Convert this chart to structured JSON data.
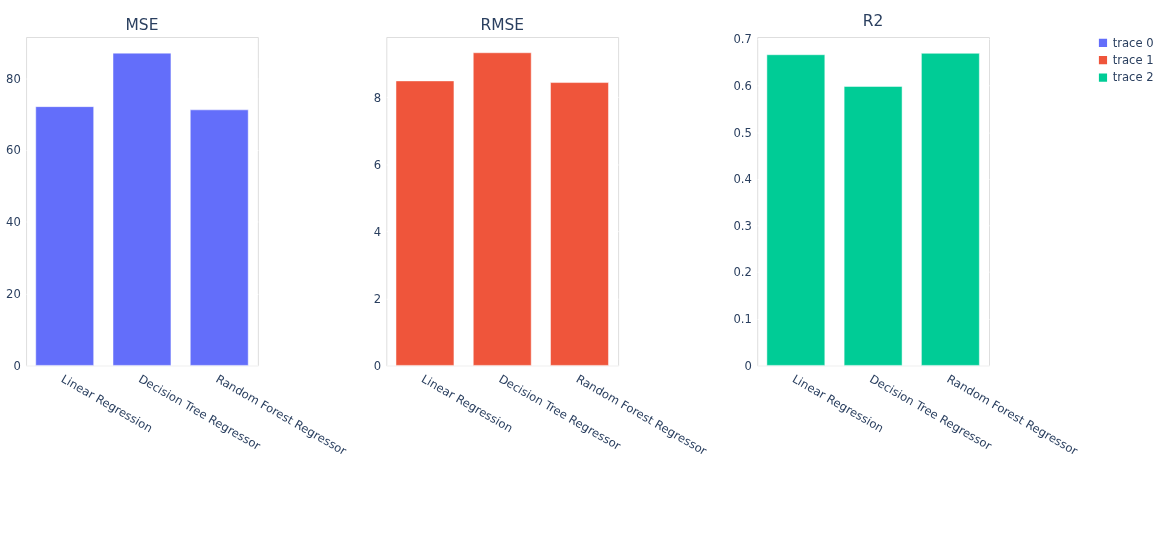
{
  "chart_data": [
    {
      "type": "bar",
      "title": "MSE",
      "categories": [
        "Linear Regression",
        "Decision Tree Regressor",
        "Random Forest Regressor"
      ],
      "series": [
        {
          "name": "trace 0",
          "color": "#636efa",
          "values": [
            72.1,
            87.0,
            71.2
          ]
        }
      ],
      "ylim": [
        0,
        91.5
      ],
      "yticks": [
        0,
        20,
        40,
        60,
        80
      ],
      "grid": "y",
      "legend": "top right"
    },
    {
      "type": "bar",
      "title": "RMSE",
      "categories": [
        "Linear Regression",
        "Decision Tree Regressor",
        "Random Forest Regressor"
      ],
      "series": [
        {
          "name": "trace 1",
          "color": "#ef553b",
          "values": [
            8.49,
            9.33,
            8.44
          ]
        }
      ],
      "ylim": [
        0,
        9.8
      ],
      "yticks": [
        0,
        2,
        4,
        6,
        8
      ],
      "grid": "y",
      "legend": "top right"
    },
    {
      "type": "bar",
      "title": "R2",
      "categories": [
        "Linear Regression",
        "Decision Tree Regressor",
        "Random Forest Regressor"
      ],
      "series": [
        {
          "name": "trace 2",
          "color": "#00cc96",
          "values": [
            0.666,
            0.598,
            0.669
          ]
        }
      ],
      "ylim": [
        0,
        0.704
      ],
      "yticks": [
        {
          "value": 0,
          "label": "0"
        },
        0.1,
        0.2,
        0.3,
        0.4,
        0.5,
        0.6,
        0.7
      ],
      "grid": "y",
      "legend": "top right"
    }
  ]
}
